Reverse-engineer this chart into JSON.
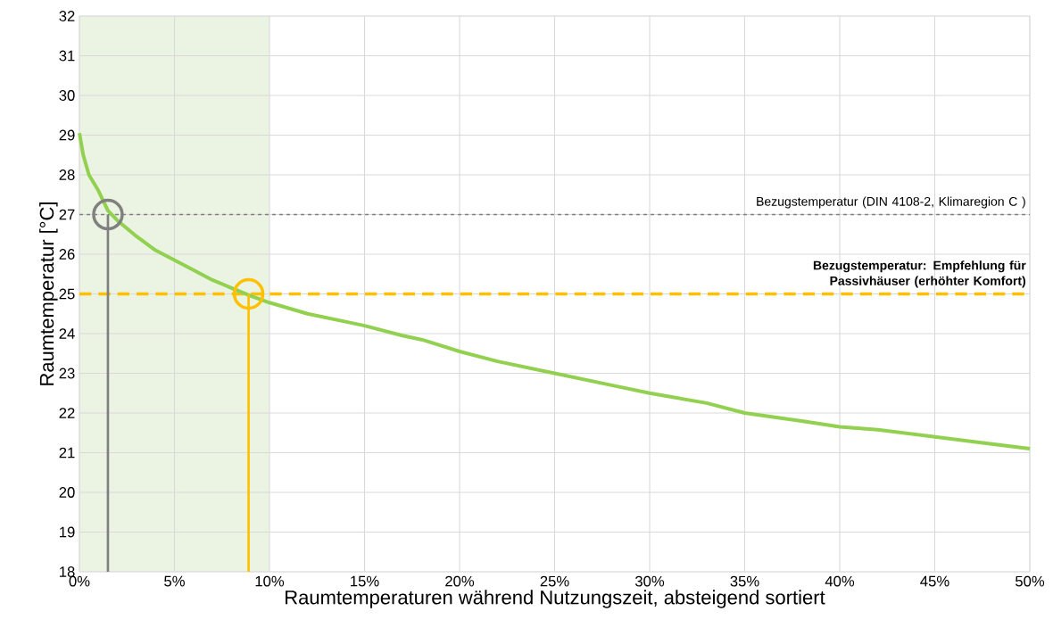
{
  "chart_data": {
    "type": "line",
    "xlabel": "Raumtemperaturen während Nutzungszeit, absteigend sortiert",
    "ylabel": "Raumtemperatur [°C]",
    "xlim": [
      0,
      50
    ],
    "ylim": [
      18,
      32
    ],
    "xticks": [
      {
        "value": 0,
        "label": "0%"
      },
      {
        "value": 5,
        "label": "5%"
      },
      {
        "value": 10,
        "label": "10%"
      },
      {
        "value": 15,
        "label": "15%"
      },
      {
        "value": 20,
        "label": "20%"
      },
      {
        "value": 25,
        "label": "25%"
      },
      {
        "value": 30,
        "label": "30%"
      },
      {
        "value": 35,
        "label": "35%"
      },
      {
        "value": 40,
        "label": "40%"
      },
      {
        "value": 45,
        "label": "45%"
      },
      {
        "value": 50,
        "label": "50%"
      }
    ],
    "yticks": [
      18,
      19,
      20,
      21,
      22,
      23,
      24,
      25,
      26,
      27,
      28,
      29,
      30,
      31,
      32
    ],
    "grid": true,
    "line_style": "solid",
    "marker": "none",
    "series": [
      {
        "color": "#92d050",
        "x": [
          0,
          0.2,
          0.5,
          1,
          1.5,
          2,
          3,
          4,
          5,
          6,
          7,
          8,
          9,
          10,
          12,
          14,
          15,
          17,
          18,
          20,
          22,
          25,
          28,
          30,
          33,
          35,
          38,
          40,
          42,
          45,
          48,
          50
        ],
        "values": [
          29.05,
          28.5,
          28.0,
          27.6,
          27.1,
          26.85,
          26.45,
          26.1,
          25.85,
          25.6,
          25.35,
          25.15,
          24.95,
          24.78,
          24.5,
          24.3,
          24.2,
          23.95,
          23.85,
          23.55,
          23.3,
          23.0,
          22.7,
          22.5,
          22.25,
          22.0,
          21.8,
          21.65,
          21.58,
          21.4,
          21.22,
          21.1
        ]
      },
      {
        "color": "#808080",
        "x": [
          1.5,
          1.5
        ],
        "values": [
          18,
          27
        ]
      },
      {
        "color": "#ffc000",
        "x": [
          8.9,
          8.9
        ],
        "values": [
          18,
          25
        ]
      },
      {
        "type": "scatter",
        "marker": "circle",
        "color": "#808080",
        "x": [
          1.5
        ],
        "values": [
          27
        ]
      },
      {
        "type": "scatter",
        "marker": "circle",
        "color": "#ffc000",
        "x": [
          8.9
        ],
        "values": [
          25
        ]
      }
    ],
    "ref_lines": [
      {
        "axis": "y",
        "value": 27,
        "label": "Bezugstemperatur (DIN 4108-2, Klimaregion C )",
        "color": "#808080",
        "line_style": "dashed"
      },
      {
        "axis": "y",
        "value": 25,
        "label": "**Bezugstemperatur: Empfehlung für Passivhäuser (erhöhter Komfort)**",
        "color": "#ffc000",
        "line_style": "dashed"
      }
    ],
    "bands": [
      {
        "axis": "x",
        "from": 0,
        "to": 10,
        "color": "#ebf3e2"
      }
    ]
  }
}
